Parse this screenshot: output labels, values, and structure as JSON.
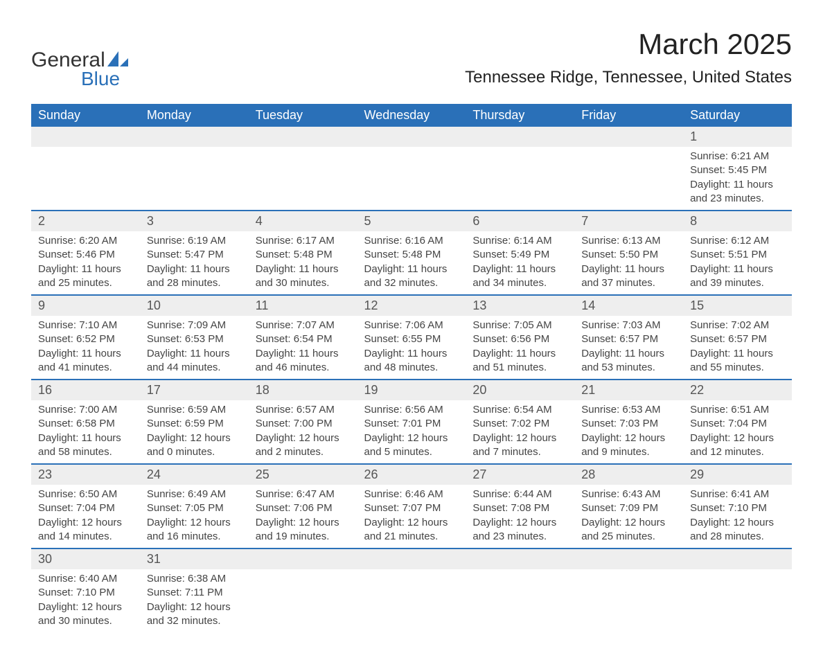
{
  "logo": {
    "general": "General",
    "blue": "Blue"
  },
  "title": "March 2025",
  "location": "Tennessee Ridge, Tennessee, United States",
  "colors": {
    "header_bg": "#2a70b8",
    "header_text": "#ffffff",
    "daynum_bg": "#eeeeee",
    "daynum_text": "#555555",
    "body_text": "#444444",
    "row_border": "#2a70b8",
    "logo_blue": "#2a70b8",
    "logo_dark": "#333333",
    "page_bg": "#ffffff"
  },
  "daysOfWeek": [
    "Sunday",
    "Monday",
    "Tuesday",
    "Wednesday",
    "Thursday",
    "Friday",
    "Saturday"
  ],
  "weeks": [
    [
      null,
      null,
      null,
      null,
      null,
      null,
      {
        "n": "1",
        "sunrise": "Sunrise: 6:21 AM",
        "sunset": "Sunset: 5:45 PM",
        "d1": "Daylight: 11 hours",
        "d2": "and 23 minutes."
      }
    ],
    [
      {
        "n": "2",
        "sunrise": "Sunrise: 6:20 AM",
        "sunset": "Sunset: 5:46 PM",
        "d1": "Daylight: 11 hours",
        "d2": "and 25 minutes."
      },
      {
        "n": "3",
        "sunrise": "Sunrise: 6:19 AM",
        "sunset": "Sunset: 5:47 PM",
        "d1": "Daylight: 11 hours",
        "d2": "and 28 minutes."
      },
      {
        "n": "4",
        "sunrise": "Sunrise: 6:17 AM",
        "sunset": "Sunset: 5:48 PM",
        "d1": "Daylight: 11 hours",
        "d2": "and 30 minutes."
      },
      {
        "n": "5",
        "sunrise": "Sunrise: 6:16 AM",
        "sunset": "Sunset: 5:48 PM",
        "d1": "Daylight: 11 hours",
        "d2": "and 32 minutes."
      },
      {
        "n": "6",
        "sunrise": "Sunrise: 6:14 AM",
        "sunset": "Sunset: 5:49 PM",
        "d1": "Daylight: 11 hours",
        "d2": "and 34 minutes."
      },
      {
        "n": "7",
        "sunrise": "Sunrise: 6:13 AM",
        "sunset": "Sunset: 5:50 PM",
        "d1": "Daylight: 11 hours",
        "d2": "and 37 minutes."
      },
      {
        "n": "8",
        "sunrise": "Sunrise: 6:12 AM",
        "sunset": "Sunset: 5:51 PM",
        "d1": "Daylight: 11 hours",
        "d2": "and 39 minutes."
      }
    ],
    [
      {
        "n": "9",
        "sunrise": "Sunrise: 7:10 AM",
        "sunset": "Sunset: 6:52 PM",
        "d1": "Daylight: 11 hours",
        "d2": "and 41 minutes."
      },
      {
        "n": "10",
        "sunrise": "Sunrise: 7:09 AM",
        "sunset": "Sunset: 6:53 PM",
        "d1": "Daylight: 11 hours",
        "d2": "and 44 minutes."
      },
      {
        "n": "11",
        "sunrise": "Sunrise: 7:07 AM",
        "sunset": "Sunset: 6:54 PM",
        "d1": "Daylight: 11 hours",
        "d2": "and 46 minutes."
      },
      {
        "n": "12",
        "sunrise": "Sunrise: 7:06 AM",
        "sunset": "Sunset: 6:55 PM",
        "d1": "Daylight: 11 hours",
        "d2": "and 48 minutes."
      },
      {
        "n": "13",
        "sunrise": "Sunrise: 7:05 AM",
        "sunset": "Sunset: 6:56 PM",
        "d1": "Daylight: 11 hours",
        "d2": "and 51 minutes."
      },
      {
        "n": "14",
        "sunrise": "Sunrise: 7:03 AM",
        "sunset": "Sunset: 6:57 PM",
        "d1": "Daylight: 11 hours",
        "d2": "and 53 minutes."
      },
      {
        "n": "15",
        "sunrise": "Sunrise: 7:02 AM",
        "sunset": "Sunset: 6:57 PM",
        "d1": "Daylight: 11 hours",
        "d2": "and 55 minutes."
      }
    ],
    [
      {
        "n": "16",
        "sunrise": "Sunrise: 7:00 AM",
        "sunset": "Sunset: 6:58 PM",
        "d1": "Daylight: 11 hours",
        "d2": "and 58 minutes."
      },
      {
        "n": "17",
        "sunrise": "Sunrise: 6:59 AM",
        "sunset": "Sunset: 6:59 PM",
        "d1": "Daylight: 12 hours",
        "d2": "and 0 minutes."
      },
      {
        "n": "18",
        "sunrise": "Sunrise: 6:57 AM",
        "sunset": "Sunset: 7:00 PM",
        "d1": "Daylight: 12 hours",
        "d2": "and 2 minutes."
      },
      {
        "n": "19",
        "sunrise": "Sunrise: 6:56 AM",
        "sunset": "Sunset: 7:01 PM",
        "d1": "Daylight: 12 hours",
        "d2": "and 5 minutes."
      },
      {
        "n": "20",
        "sunrise": "Sunrise: 6:54 AM",
        "sunset": "Sunset: 7:02 PM",
        "d1": "Daylight: 12 hours",
        "d2": "and 7 minutes."
      },
      {
        "n": "21",
        "sunrise": "Sunrise: 6:53 AM",
        "sunset": "Sunset: 7:03 PM",
        "d1": "Daylight: 12 hours",
        "d2": "and 9 minutes."
      },
      {
        "n": "22",
        "sunrise": "Sunrise: 6:51 AM",
        "sunset": "Sunset: 7:04 PM",
        "d1": "Daylight: 12 hours",
        "d2": "and 12 minutes."
      }
    ],
    [
      {
        "n": "23",
        "sunrise": "Sunrise: 6:50 AM",
        "sunset": "Sunset: 7:04 PM",
        "d1": "Daylight: 12 hours",
        "d2": "and 14 minutes."
      },
      {
        "n": "24",
        "sunrise": "Sunrise: 6:49 AM",
        "sunset": "Sunset: 7:05 PM",
        "d1": "Daylight: 12 hours",
        "d2": "and 16 minutes."
      },
      {
        "n": "25",
        "sunrise": "Sunrise: 6:47 AM",
        "sunset": "Sunset: 7:06 PM",
        "d1": "Daylight: 12 hours",
        "d2": "and 19 minutes."
      },
      {
        "n": "26",
        "sunrise": "Sunrise: 6:46 AM",
        "sunset": "Sunset: 7:07 PM",
        "d1": "Daylight: 12 hours",
        "d2": "and 21 minutes."
      },
      {
        "n": "27",
        "sunrise": "Sunrise: 6:44 AM",
        "sunset": "Sunset: 7:08 PM",
        "d1": "Daylight: 12 hours",
        "d2": "and 23 minutes."
      },
      {
        "n": "28",
        "sunrise": "Sunrise: 6:43 AM",
        "sunset": "Sunset: 7:09 PM",
        "d1": "Daylight: 12 hours",
        "d2": "and 25 minutes."
      },
      {
        "n": "29",
        "sunrise": "Sunrise: 6:41 AM",
        "sunset": "Sunset: 7:10 PM",
        "d1": "Daylight: 12 hours",
        "d2": "and 28 minutes."
      }
    ],
    [
      {
        "n": "30",
        "sunrise": "Sunrise: 6:40 AM",
        "sunset": "Sunset: 7:10 PM",
        "d1": "Daylight: 12 hours",
        "d2": "and 30 minutes."
      },
      {
        "n": "31",
        "sunrise": "Sunrise: 6:38 AM",
        "sunset": "Sunset: 7:11 PM",
        "d1": "Daylight: 12 hours",
        "d2": "and 32 minutes."
      },
      null,
      null,
      null,
      null,
      null
    ]
  ]
}
